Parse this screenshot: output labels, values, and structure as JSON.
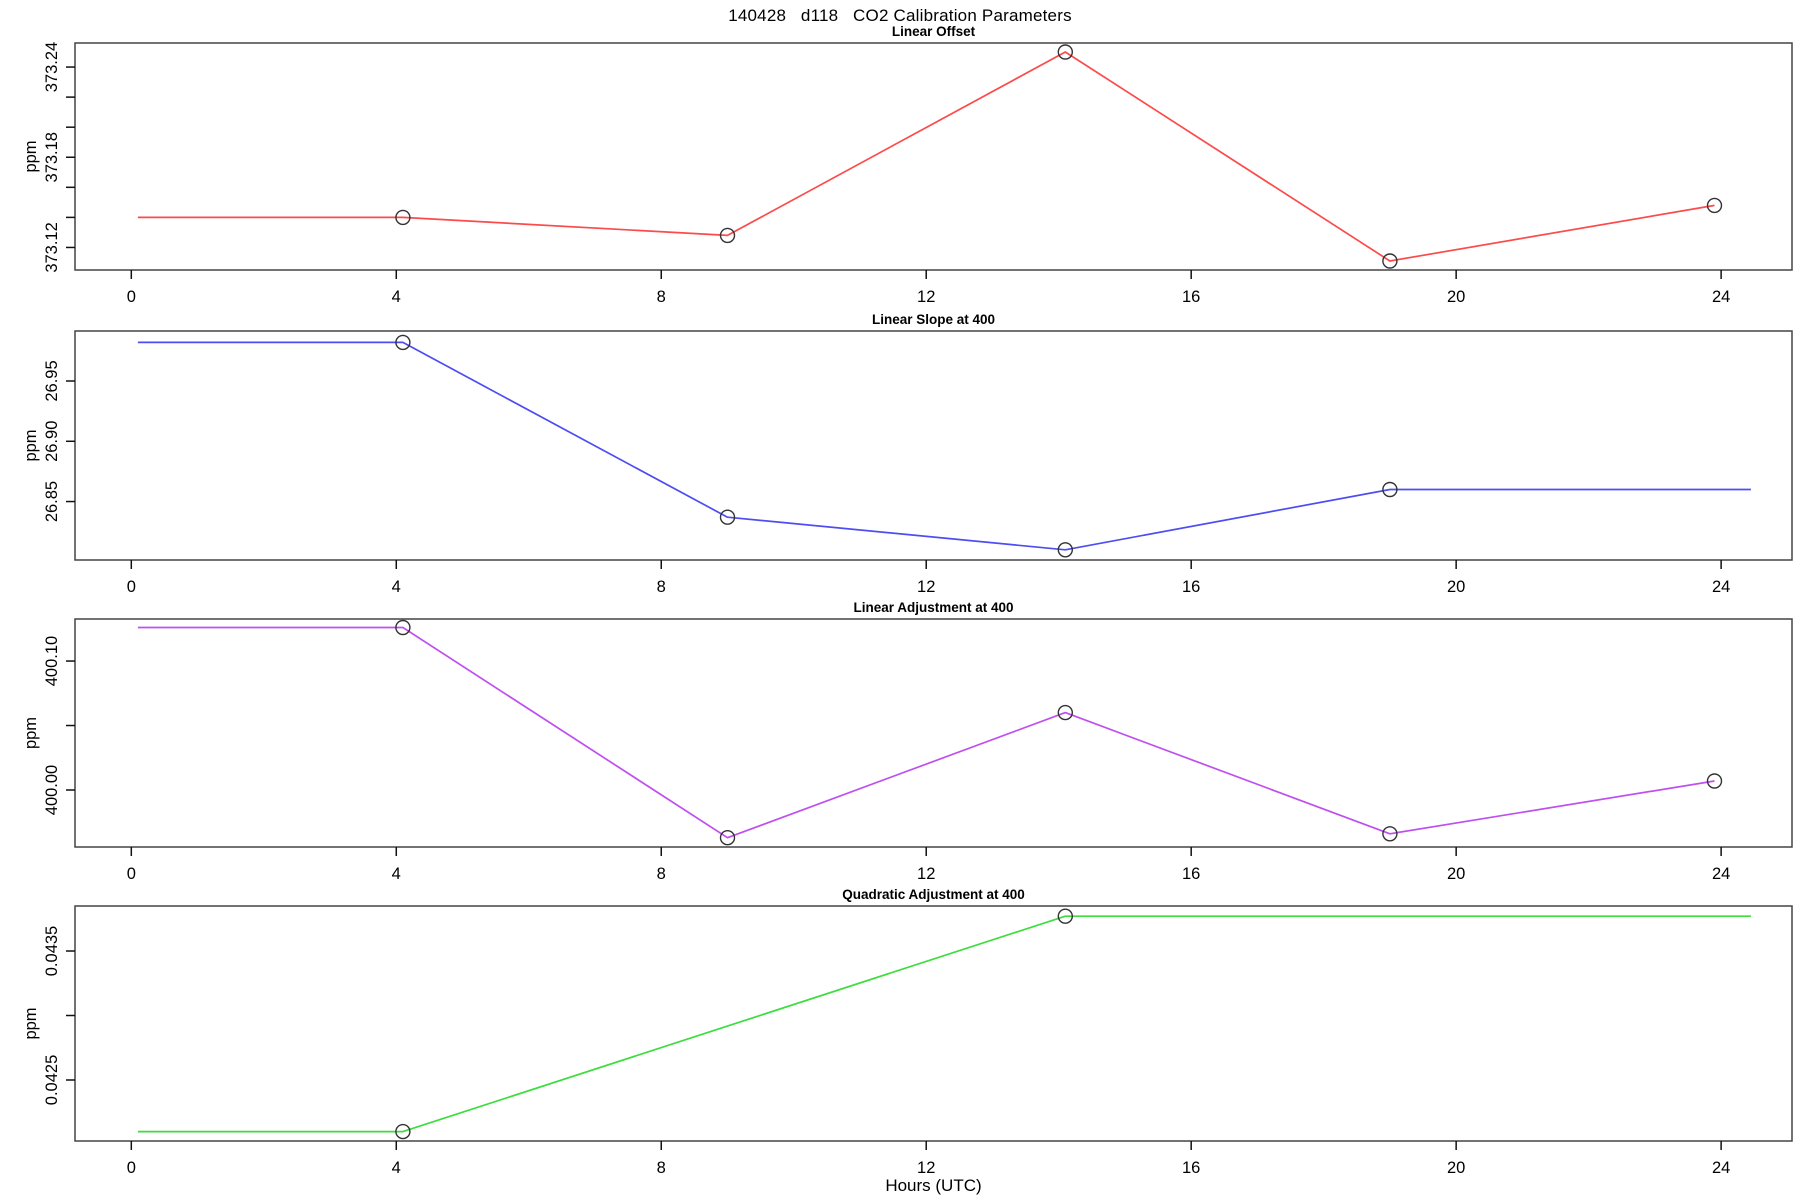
{
  "page": {
    "title": "140428   d118   CO2 Calibration Parameters",
    "xlabel": "Hours (UTC)",
    "background": "#ffffff",
    "axis_color": "#444444",
    "marker_color": "#333333"
  },
  "chart_data": [
    {
      "type": "line",
      "title": "Linear Offset",
      "ylabel": "ppm",
      "color": "#fb4b4b",
      "marker": "open-circle",
      "grid": false,
      "xlim": [
        -0.85,
        25.07
      ],
      "ylim": [
        373.105,
        373.256
      ],
      "xticks": [
        0,
        4,
        8,
        12,
        16,
        20,
        24
      ],
      "yticks": [
        {
          "value": 373.12,
          "label": "373.12"
        },
        {
          "value": 373.14,
          "label": ""
        },
        {
          "value": 373.16,
          "label": ""
        },
        {
          "value": 373.18,
          "label": "373.18"
        },
        {
          "value": 373.2,
          "label": ""
        },
        {
          "value": 373.22,
          "label": ""
        },
        {
          "value": 373.24,
          "label": "373.24"
        }
      ],
      "points": [
        {
          "x": 0.1,
          "y": 373.14,
          "m": false
        },
        {
          "x": 4.1,
          "y": 373.14,
          "m": true
        },
        {
          "x": 9.0,
          "y": 373.128,
          "m": true
        },
        {
          "x": 14.1,
          "y": 373.25,
          "m": true
        },
        {
          "x": 19.0,
          "y": 373.111,
          "m": true
        },
        {
          "x": 23.9,
          "y": 373.148,
          "m": true
        }
      ]
    },
    {
      "type": "line",
      "title": "Linear Slope at 400",
      "ylabel": "ppm",
      "color": "#4d4df2",
      "marker": "open-circle",
      "grid": false,
      "xlim": [
        -0.85,
        25.07
      ],
      "ylim": [
        26.8015,
        26.9915
      ],
      "xticks": [
        0,
        4,
        8,
        12,
        16,
        20,
        24
      ],
      "yticks": [
        {
          "value": 26.85,
          "label": "26.85"
        },
        {
          "value": 26.9,
          "label": "26.90"
        },
        {
          "value": 26.95,
          "label": "26.95"
        }
      ],
      "points": [
        {
          "x": 0.1,
          "y": 26.982,
          "m": false
        },
        {
          "x": 4.1,
          "y": 26.982,
          "m": true
        },
        {
          "x": 9.0,
          "y": 26.837,
          "m": true
        },
        {
          "x": 14.1,
          "y": 26.81,
          "m": true
        },
        {
          "x": 19.0,
          "y": 26.86,
          "m": true
        },
        {
          "x": 24.45,
          "y": 26.86,
          "m": false
        }
      ]
    },
    {
      "type": "line",
      "title": "Linear Adjustment at 400",
      "ylabel": "ppm",
      "color": "#bf4fef",
      "marker": "open-circle",
      "grid": false,
      "xlim": [
        -0.85,
        25.07
      ],
      "ylim": [
        399.9558,
        400.1326
      ],
      "xticks": [
        0,
        4,
        8,
        12,
        16,
        20,
        24
      ],
      "yticks": [
        {
          "value": 400.0,
          "label": "400.00"
        },
        {
          "value": 400.05,
          "label": ""
        },
        {
          "value": 400.1,
          "label": "400.10"
        }
      ],
      "points": [
        {
          "x": 0.1,
          "y": 400.126,
          "m": false
        },
        {
          "x": 4.1,
          "y": 400.126,
          "m": true
        },
        {
          "x": 9.0,
          "y": 399.963,
          "m": true
        },
        {
          "x": 14.1,
          "y": 400.06,
          "m": true
        },
        {
          "x": 19.0,
          "y": 399.966,
          "m": true
        },
        {
          "x": 23.9,
          "y": 400.007,
          "m": true
        }
      ]
    },
    {
      "type": "line",
      "title": "Quadratic Adjustment at 400",
      "ylabel": "ppm",
      "color": "#3ddd3d",
      "marker": "open-circle",
      "grid": false,
      "xlim": [
        -0.85,
        25.07
      ],
      "ylim": [
        0.042027,
        0.043849
      ],
      "xticks": [
        0,
        4,
        8,
        12,
        16,
        20,
        24
      ],
      "yticks": [
        {
          "value": 0.0425,
          "label": "0.0425"
        },
        {
          "value": 0.043,
          "label": ""
        },
        {
          "value": 0.0435,
          "label": "0.0435"
        }
      ],
      "points": [
        {
          "x": 0.1,
          "y": 0.0421,
          "m": false
        },
        {
          "x": 4.1,
          "y": 0.0421,
          "m": true
        },
        {
          "x": 14.1,
          "y": 0.04377,
          "m": true
        },
        {
          "x": 24.45,
          "y": 0.04377,
          "m": false
        }
      ]
    }
  ]
}
